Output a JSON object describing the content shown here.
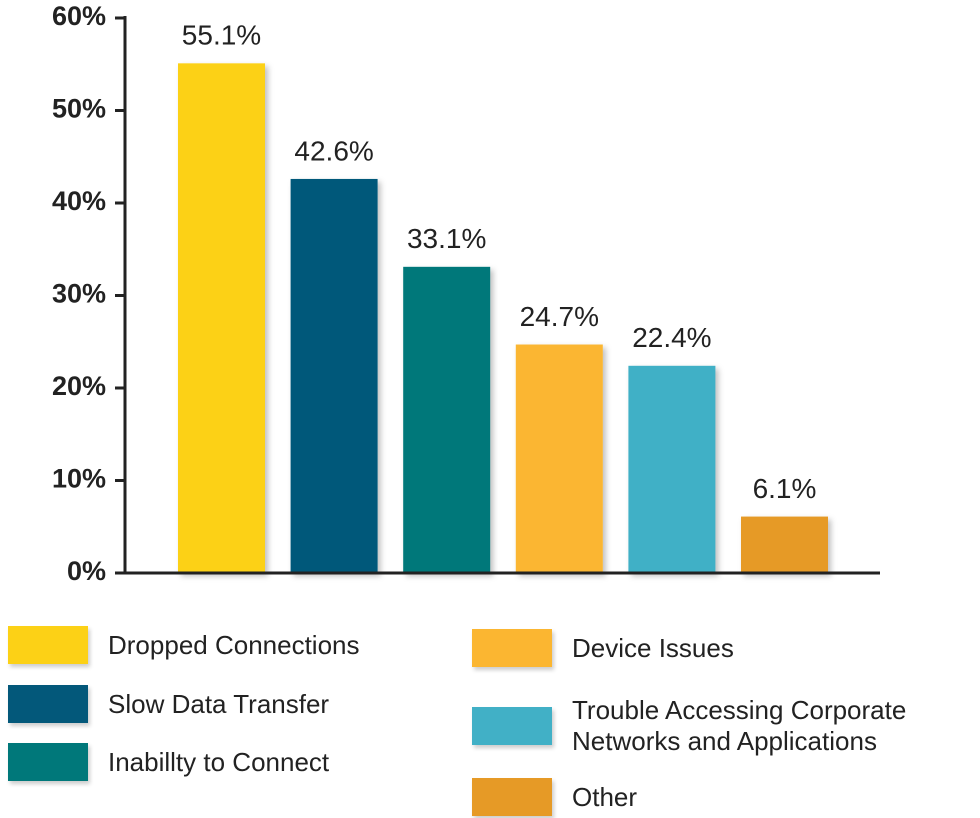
{
  "chart_data": {
    "type": "bar",
    "categories": [
      "Dropped Connections",
      "Slow Data Transfer",
      "Inabillty to Connect",
      "Device Issues",
      "Trouble Accessing Corporate Networks and Applications",
      "Other"
    ],
    "values": [
      55.1,
      42.6,
      33.1,
      24.7,
      22.4,
      6.1
    ],
    "value_labels": [
      "55.1%",
      "42.6%",
      "33.1%",
      "24.7%",
      "22.4%",
      "6.1%"
    ],
    "colors": [
      "#fcd116",
      "#03587a",
      "#00787a",
      "#fbb631",
      "#41b0c6",
      "#e69a26"
    ],
    "ylim": [
      0,
      60
    ],
    "yticks": [
      {
        "value": 0,
        "label": "0%"
      },
      {
        "value": 10,
        "label": "10%"
      },
      {
        "value": 20,
        "label": "20%"
      },
      {
        "value": 30,
        "label": "30%"
      },
      {
        "value": 40,
        "label": "40%"
      },
      {
        "value": 50,
        "label": "50%"
      },
      {
        "value": 60,
        "label": "60%"
      }
    ]
  }
}
